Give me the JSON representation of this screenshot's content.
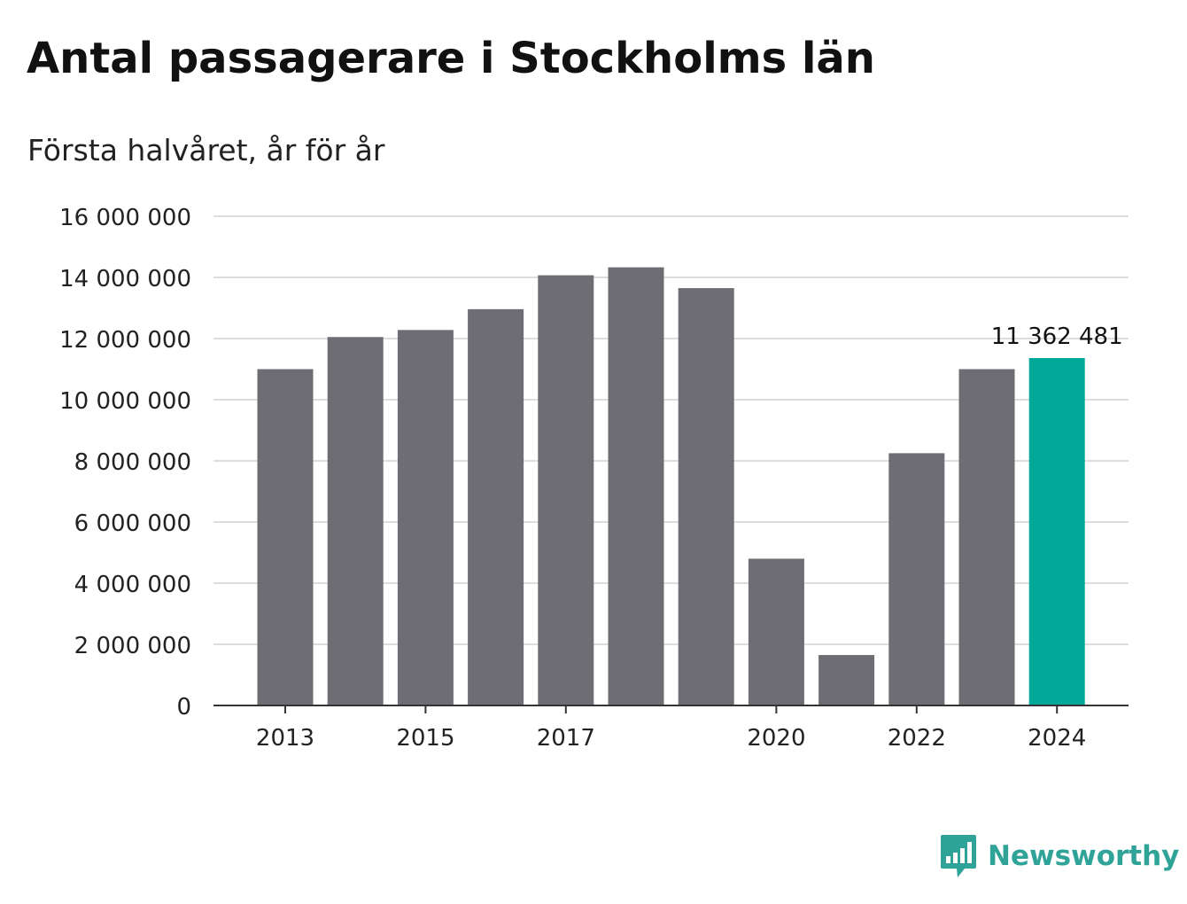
{
  "header": {
    "title": "Antal passagerare i Stockholms län",
    "subtitle": "Första halvåret, år för år"
  },
  "brand": {
    "name": "Newsworthy",
    "icon": "bar-chart-speech-bubble-icon",
    "color": "#2fa398"
  },
  "colors": {
    "bar": "#6e6d73",
    "highlight": "#00a89a",
    "grid": "#dddddd",
    "axis": "#333333"
  },
  "chart_data": {
    "type": "bar",
    "title": "Antal passagerare i Stockholms län",
    "subtitle": "Första halvåret, år för år",
    "xlabel": "",
    "ylabel": "",
    "categories": [
      "2013",
      "2014",
      "2015",
      "2016",
      "2017",
      "2018",
      "2019",
      "2020",
      "2021",
      "2022",
      "2023",
      "2024"
    ],
    "values": [
      11000000,
      12050000,
      12280000,
      12960000,
      14070000,
      14330000,
      13650000,
      4800000,
      1650000,
      8250000,
      11000000,
      11362481
    ],
    "highlight_index": 11,
    "data_labels": [
      {
        "category": "2024",
        "text": "11 362 481"
      }
    ],
    "ylim": [
      0,
      16000000
    ],
    "y_ticks": [
      {
        "value": 0,
        "label": "0"
      },
      {
        "value": 2000000,
        "label": "2 000 000"
      },
      {
        "value": 4000000,
        "label": "4 000 000"
      },
      {
        "value": 6000000,
        "label": "6 000 000"
      },
      {
        "value": 8000000,
        "label": "8 000 000"
      },
      {
        "value": 10000000,
        "label": "10 000 000"
      },
      {
        "value": 12000000,
        "label": "12 000 000"
      },
      {
        "value": 14000000,
        "label": "14 000 000"
      },
      {
        "value": 16000000,
        "label": "16 000 000"
      }
    ],
    "x_tick_labels": [
      "2013",
      "2015",
      "2017",
      "2020",
      "2022",
      "2024"
    ],
    "grid": true,
    "legend": "none"
  }
}
